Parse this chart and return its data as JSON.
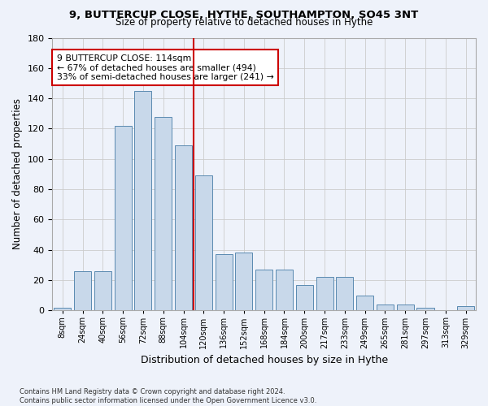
{
  "title": "9, BUTTERCUP CLOSE, HYTHE, SOUTHAMPTON, SO45 3NT",
  "subtitle": "Size of property relative to detached houses in Hythe",
  "xlabel": "Distribution of detached houses by size in Hythe",
  "ylabel": "Number of detached properties",
  "bar_color": "#c8d8ea",
  "bar_edge_color": "#5a8ab0",
  "bin_labels": [
    "8sqm",
    "24sqm",
    "40sqm",
    "56sqm",
    "72sqm",
    "88sqm",
    "104sqm",
    "120sqm",
    "136sqm",
    "152sqm",
    "168sqm",
    "184sqm",
    "200sqm",
    "217sqm",
    "233sqm",
    "249sqm",
    "265sqm",
    "281sqm",
    "297sqm",
    "313sqm",
    "329sqm"
  ],
  "bar_heights": [
    2,
    26,
    26,
    122,
    145,
    128,
    109,
    89,
    37,
    38,
    27,
    27,
    17,
    22,
    22,
    10,
    4,
    4,
    2,
    0,
    3
  ],
  "property_size_bin": 7,
  "vline_color": "#cc0000",
  "annotation_text": "9 BUTTERCUP CLOSE: 114sqm\n← 67% of detached houses are smaller (494)\n33% of semi-detached houses are larger (241) →",
  "annotation_box_color": "#ffffff",
  "annotation_box_edge_color": "#cc0000",
  "ylim": [
    0,
    180
  ],
  "grid_color": "#cccccc",
  "background_color": "#eef2fa",
  "footnote": "Contains HM Land Registry data © Crown copyright and database right 2024.\nContains public sector information licensed under the Open Government Licence v3.0."
}
